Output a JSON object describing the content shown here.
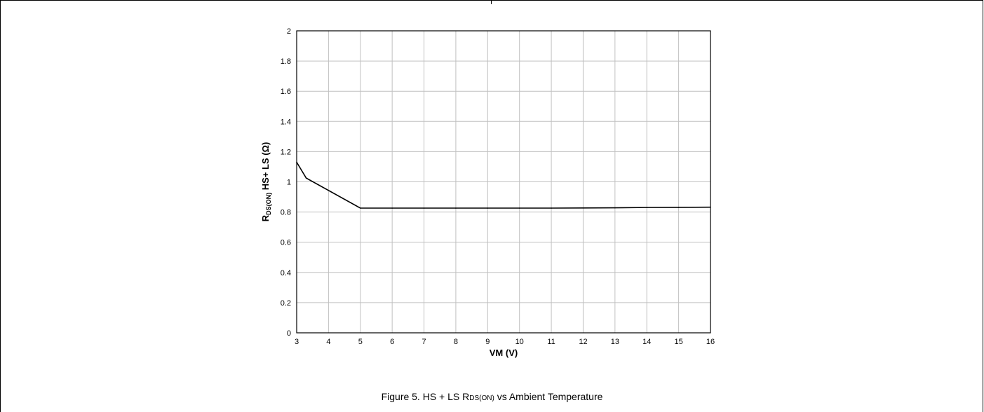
{
  "chart_data": {
    "type": "line",
    "title": "",
    "xlabel": "VM (V)",
    "ylabel": {
      "main": "R",
      "sub": "DS(ON)",
      "rest": " HS+ LS (Ω)"
    },
    "xlim": [
      3,
      16
    ],
    "ylim": [
      0,
      2
    ],
    "x_ticks": [
      "3",
      "4",
      "5",
      "6",
      "7",
      "8",
      "9",
      "10",
      "11",
      "12",
      "13",
      "14",
      "15",
      "16"
    ],
    "y_ticks": [
      "0",
      "0.2",
      "0.4",
      "0.6",
      "0.8",
      "1",
      "1.2",
      "1.4",
      "1.6",
      "1.8",
      "2"
    ],
    "grid": true,
    "series": [
      {
        "x": [
          3,
          3.3,
          5,
          6,
          7,
          8,
          9,
          10,
          11,
          12,
          13,
          14,
          15,
          16
        ],
        "y": [
          1.13,
          1.025,
          0.826,
          0.826,
          0.826,
          0.826,
          0.826,
          0.826,
          0.826,
          0.827,
          0.828,
          0.83,
          0.831,
          0.832
        ]
      }
    ],
    "colors": {
      "line": "#000000",
      "grid": "#c0c0c0",
      "frame": "#000000"
    }
  },
  "caption": {
    "prefix": "Figure 5. HS + LS R",
    "sub": "DS(ON)",
    "suffix": " vs Ambient Temperature"
  }
}
